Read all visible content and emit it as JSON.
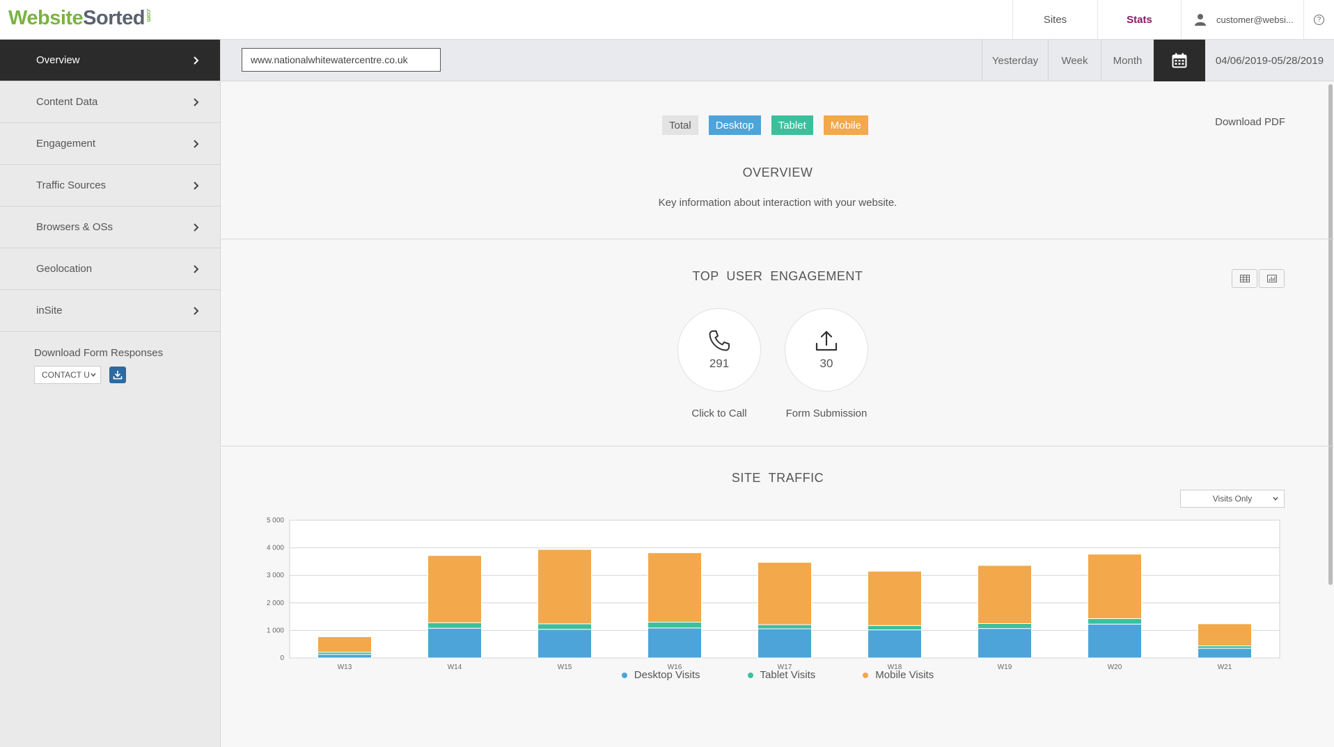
{
  "header": {
    "logo_website": "Website",
    "logo_sorted": "Sorted",
    "logo_com": ".com",
    "nav_sites": "Sites",
    "nav_stats": "Stats",
    "user_email": "customer@websi...",
    "help": "?"
  },
  "sidebar": {
    "items": [
      {
        "label": "Overview"
      },
      {
        "label": "Content Data"
      },
      {
        "label": "Engagement"
      },
      {
        "label": "Traffic Sources"
      },
      {
        "label": "Browsers & OSs"
      },
      {
        "label": "Geolocation"
      },
      {
        "label": "inSite"
      }
    ],
    "download_title": "Download Form Responses",
    "download_select": "CONTACT U"
  },
  "toolbar": {
    "site_url": "www.nationalwhitewatercentre.co.uk",
    "yesterday": "Yesterday",
    "week": "Week",
    "month": "Month",
    "date_range": "04/06/2019-05/28/2019"
  },
  "overview": {
    "toggle_total": "Total",
    "toggle_desktop": "Desktop",
    "toggle_tablet": "Tablet",
    "toggle_mobile": "Mobile",
    "download_pdf": "Download PDF",
    "title": "OVERVIEW",
    "subtitle": "Key information about interaction with your website."
  },
  "engagement": {
    "title": "TOP  USER  ENGAGEMENT",
    "metrics": [
      {
        "value": "291",
        "label": "Click to Call"
      },
      {
        "value": "30",
        "label": "Form Submission"
      }
    ]
  },
  "traffic": {
    "title": "SITE  TRAFFIC",
    "select": "Visits Only"
  },
  "colors": {
    "desktop": "#4da4d8",
    "tablet": "#3dbf9c",
    "mobile": "#f2a84b"
  },
  "chart_data": {
    "type": "bar",
    "stacked": true,
    "categories": [
      "W13",
      "W14",
      "W15",
      "W16",
      "W17",
      "W18",
      "W19",
      "W20",
      "W21"
    ],
    "series": [
      {
        "name": "Desktop Visits",
        "values": [
          130,
          1080,
          1040,
          1090,
          1060,
          1020,
          1070,
          1230,
          350
        ]
      },
      {
        "name": "Tablet Visits",
        "values": [
          80,
          200,
          200,
          210,
          150,
          160,
          180,
          200,
          90
        ]
      },
      {
        "name": "Mobile Visits",
        "values": [
          560,
          2440,
          2700,
          2520,
          2260,
          1970,
          2110,
          2340,
          800
        ]
      }
    ],
    "yticks": [
      "0",
      "1 000",
      "2 000",
      "3 000",
      "4 000",
      "5 000"
    ],
    "ylim": [
      0,
      5000
    ],
    "grid": true,
    "legend_position": "bottom"
  }
}
